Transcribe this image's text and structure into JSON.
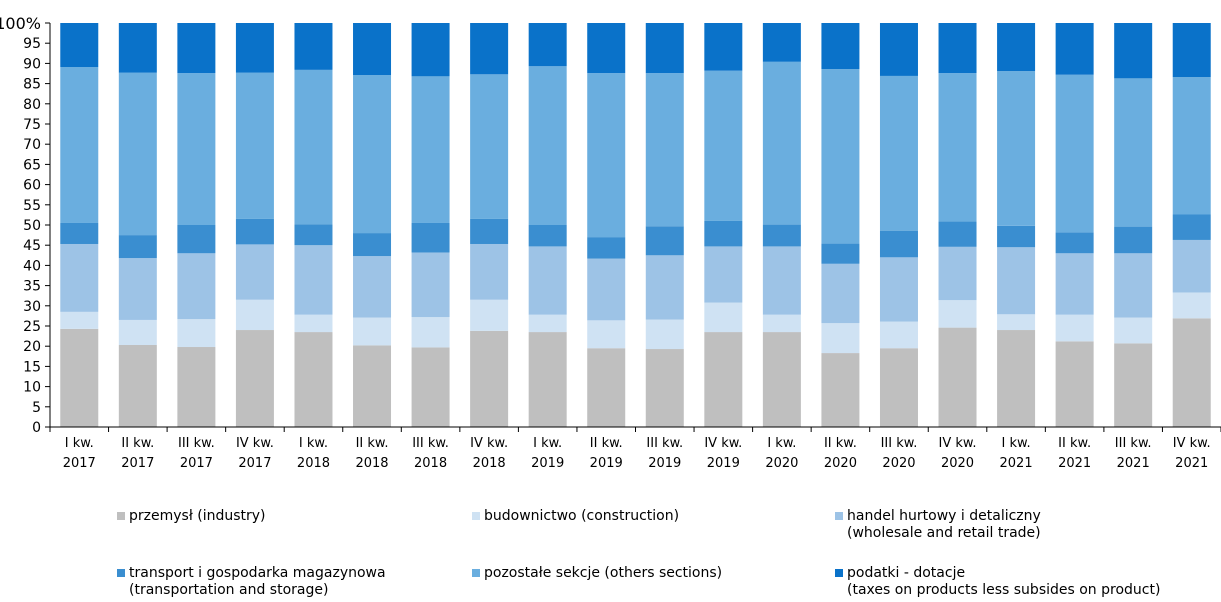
{
  "chart_data": {
    "type": "bar",
    "stacked": true,
    "ylim": [
      0,
      100
    ],
    "yticks": [
      0,
      5,
      10,
      15,
      20,
      25,
      30,
      35,
      40,
      45,
      50,
      55,
      60,
      65,
      70,
      75,
      80,
      85,
      90,
      95,
      100
    ],
    "y_top_label": "100%",
    "grid": false,
    "legend_position": "bottom",
    "categories": [
      [
        "I kw.",
        "2017"
      ],
      [
        "II kw.",
        "2017"
      ],
      [
        "III kw.",
        "2017"
      ],
      [
        "IV kw.",
        "2017"
      ],
      [
        "I kw.",
        "2018"
      ],
      [
        "II kw.",
        "2018"
      ],
      [
        "III kw.",
        "2018"
      ],
      [
        "IV kw.",
        "2018"
      ],
      [
        "I kw.",
        "2019"
      ],
      [
        "II kw.",
        "2019"
      ],
      [
        "III kw.",
        "2019"
      ],
      [
        "IV kw.",
        "2019"
      ],
      [
        "I kw.",
        "2020"
      ],
      [
        "II kw.",
        "2020"
      ],
      [
        "III kw.",
        "2020"
      ],
      [
        "IV kw.",
        "2020"
      ],
      [
        "I kw.",
        "2021"
      ],
      [
        "II kw.",
        "2021"
      ],
      [
        "III kw.",
        "2021"
      ],
      [
        "IV kw.",
        "2021"
      ]
    ],
    "series": [
      {
        "name_lines": [
          "przemysł (industry)"
        ],
        "color": "#bfbfbf",
        "values": [
          24.3,
          20.3,
          19.8,
          24.0,
          23.5,
          20.2,
          19.7,
          23.8,
          23.5,
          19.5,
          19.3,
          23.5,
          23.5,
          18.3,
          19.5,
          24.6,
          24.0,
          21.2,
          20.7,
          26.9
        ]
      },
      {
        "name_lines": [
          "budownictwo (construction)"
        ],
        "color": "#cfe2f3",
        "values": [
          4.2,
          6.2,
          6.9,
          7.5,
          4.3,
          6.9,
          7.5,
          7.7,
          4.3,
          6.9,
          7.3,
          7.3,
          4.3,
          7.4,
          6.6,
          6.8,
          3.9,
          6.6,
          6.4,
          6.4
        ]
      },
      {
        "name_lines": [
          "handel hurtowy i detaliczny",
          "(wholesale and retail trade)"
        ],
        "color": "#9dc3e6",
        "values": [
          16.8,
          15.3,
          16.3,
          13.7,
          17.2,
          15.2,
          16.0,
          13.8,
          16.9,
          15.3,
          15.9,
          13.9,
          16.9,
          14.7,
          15.9,
          13.2,
          16.6,
          15.2,
          15.9,
          13.0
        ]
      },
      {
        "name_lines": [
          "transport i gospodarka magazynowa",
          "(transportation and storage)"
        ],
        "color": "#3a8ed0",
        "values": [
          5.2,
          5.7,
          7.0,
          6.3,
          5.2,
          5.7,
          7.3,
          6.2,
          5.3,
          5.3,
          7.2,
          6.3,
          5.4,
          5.0,
          6.6,
          6.3,
          5.3,
          5.2,
          6.6,
          6.3
        ]
      },
      {
        "name_lines": [
          "pozostałe sekcje (others sections)"
        ],
        "color": "#6aaedf",
        "values": [
          38.6,
          40.2,
          37.6,
          36.2,
          38.2,
          39.1,
          36.3,
          35.8,
          39.3,
          40.6,
          37.9,
          37.2,
          40.3,
          43.2,
          38.3,
          36.7,
          38.3,
          39.0,
          36.7,
          34.0
        ]
      },
      {
        "name_lines": [
          "podatki - dotacje",
          "(taxes on products less subsides on product)"
        ],
        "color": "#0a72c9",
        "values": [
          10.9,
          12.3,
          12.4,
          12.3,
          11.6,
          12.9,
          13.2,
          12.7,
          10.7,
          12.4,
          12.4,
          11.8,
          9.6,
          11.4,
          13.1,
          12.4,
          11.9,
          12.8,
          13.7,
          13.4
        ]
      }
    ]
  }
}
